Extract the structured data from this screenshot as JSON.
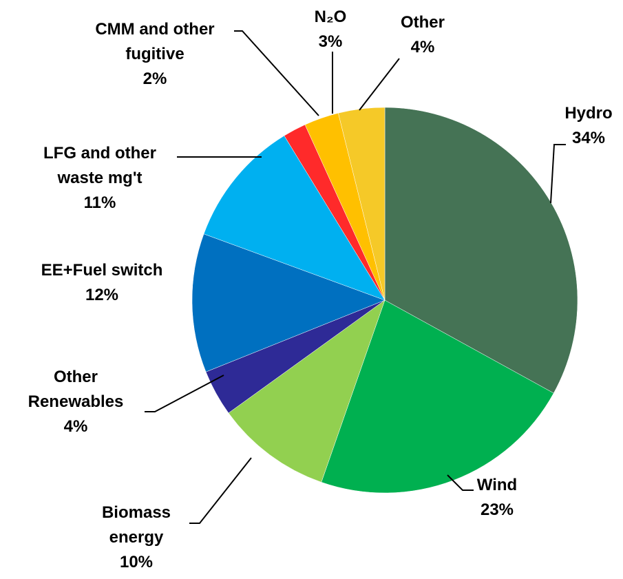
{
  "chart_data": {
    "type": "pie",
    "categories": [
      "Hydro",
      "Wind",
      "Biomass\nenergy",
      "Other\nRenewables",
      "EE+Fuel switch",
      "LFG and other\nwaste mg't",
      "CMM and other\nfugitive",
      "N₂O",
      "Other"
    ],
    "values": [
      34,
      23,
      10,
      4,
      12,
      11,
      2,
      3,
      4
    ],
    "value_labels": [
      "34%",
      "23%",
      "10%",
      "4%",
      "12%",
      "11%",
      "2%",
      "3%",
      "4%"
    ],
    "colors": [
      "#457355",
      "#00b050",
      "#92d050",
      "#2e2a96",
      "#0070c0",
      "#00b0f0",
      "#ff2a2a",
      "#ffc000",
      "#f5c928"
    ]
  }
}
